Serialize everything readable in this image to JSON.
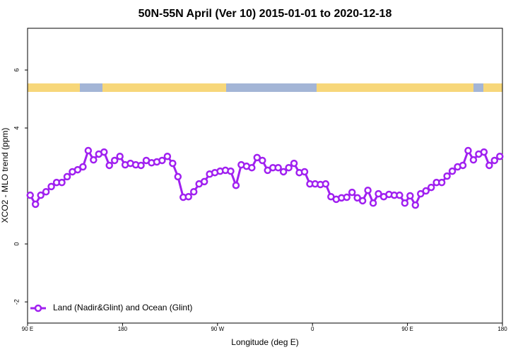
{
  "chart_data": {
    "type": "line",
    "title": "50N-55N April (Ver 10)   2015-01-01 to 2020-12-18",
    "x_label": "Longitude (deg E)",
    "y_label": "XCO2 - MLO trend (ppm)",
    "x": [
      92.5,
      97.5,
      102.5,
      107.5,
      112.5,
      117.5,
      122.5,
      127.5,
      132.5,
      137.5,
      142.5,
      147.5,
      152.5,
      157.5,
      162.5,
      167.5,
      172.5,
      177.5,
      182.5,
      187.5,
      192.5,
      197.5,
      202.5,
      207.5,
      212.5,
      217.5,
      222.5,
      227.5,
      232.5,
      237.5,
      242.5,
      247.5,
      252.5,
      257.5,
      262.5,
      267.5,
      272.5,
      277.5,
      282.5,
      287.5,
      292.5,
      297.5,
      302.5,
      307.5,
      312.5,
      317.5,
      322.5,
      327.5,
      332.5,
      337.5,
      342.5,
      347.5,
      352.5,
      357.5,
      362.5,
      367.5,
      372.5,
      377.5,
      382.5,
      387.5,
      392.5,
      397.5,
      402.5,
      407.5,
      412.5,
      417.5,
      422.5,
      427.5,
      432.5,
      437.5,
      442.5,
      447.5,
      452.5,
      457.5,
      462.5,
      467.5,
      472.5,
      477.5,
      482.5,
      487.5,
      492.5,
      497.5,
      502.5,
      507.5,
      512.5,
      517.5,
      522.5,
      527.5,
      532.5,
      537.5
    ],
    "series": [
      {
        "name": "Land (Nadir&Glint) and Ocean (Glint)",
        "color": "#a020f0",
        "values": [
          1.68,
          1.37,
          1.68,
          1.8,
          1.98,
          2.12,
          2.12,
          2.32,
          2.49,
          2.56,
          2.66,
          3.22,
          2.9,
          3.1,
          3.17,
          2.71,
          2.88,
          3.02,
          2.73,
          2.78,
          2.73,
          2.71,
          2.88,
          2.8,
          2.83,
          2.88,
          3.02,
          2.78,
          2.32,
          1.61,
          1.63,
          1.8,
          2.07,
          2.15,
          2.41,
          2.46,
          2.51,
          2.54,
          2.51,
          2.02,
          2.73,
          2.68,
          2.63,
          2.98,
          2.88,
          2.54,
          2.63,
          2.63,
          2.49,
          2.63,
          2.78,
          2.46,
          2.49,
          2.07,
          2.07,
          2.05,
          2.07,
          1.63,
          1.54,
          1.59,
          1.61,
          1.78,
          1.59,
          1.49,
          1.85,
          1.41,
          1.73,
          1.63,
          1.71,
          1.68,
          1.68,
          1.41,
          1.66,
          1.34,
          1.73,
          1.83,
          1.95,
          2.12,
          2.12,
          2.34,
          2.51,
          2.66,
          2.71,
          3.22,
          2.9,
          3.1,
          3.17,
          2.71,
          2.88,
          3.02
        ]
      }
    ],
    "xlim": [
      90,
      540
    ],
    "xticks": [
      {
        "value": 90,
        "label": "90 E"
      },
      180,
      {
        "value": 270,
        "label": "90 W"
      },
      {
        "value": 360,
        "label": "0"
      },
      {
        "value": 450,
        "label": "90 E"
      },
      {
        "value": 540,
        "label": "180"
      }
    ],
    "ylim": [
      -2.73,
      7.44
    ],
    "yticks": [
      -2,
      0,
      4,
      6
    ],
    "legend": "bottom-left"
  }
}
